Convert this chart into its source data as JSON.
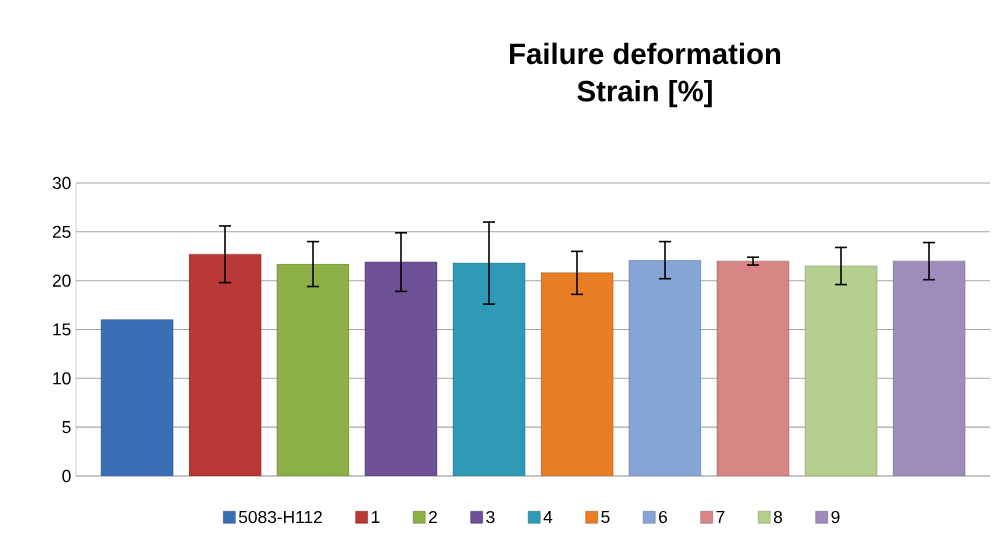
{
  "chart_data": {
    "type": "bar",
    "title": "Failure deformation",
    "subtitle": "Strain [%]",
    "categories": [
      null
    ],
    "series": [
      {
        "name": "5083-H112",
        "color": "#3a6fb5",
        "values": [
          16.0
        ],
        "errors": [
          null
        ]
      },
      {
        "name": "1",
        "color": "#b83835",
        "values": [
          22.7
        ],
        "errors": [
          2.9
        ]
      },
      {
        "name": "2",
        "color": "#8cb045",
        "values": [
          21.7
        ],
        "errors": [
          2.3
        ]
      },
      {
        "name": "3",
        "color": "#6e5196",
        "values": [
          21.9
        ],
        "errors": [
          3.0
        ]
      },
      {
        "name": "4",
        "color": "#2e9ab5",
        "values": [
          21.8
        ],
        "errors": [
          4.2
        ]
      },
      {
        "name": "5",
        "color": "#e97d24",
        "values": [
          20.8
        ],
        "errors": [
          2.2
        ]
      },
      {
        "name": "6",
        "color": "#87a4d6",
        "values": [
          22.1
        ],
        "errors": [
          1.9
        ]
      },
      {
        "name": "7",
        "color": "#d78585",
        "values": [
          22.0
        ],
        "errors": [
          0.4
        ]
      },
      {
        "name": "8",
        "color": "#b4cf8d",
        "values": [
          21.5
        ],
        "errors": [
          1.9
        ]
      },
      {
        "name": "9",
        "color": "#9e8cbb",
        "values": [
          22.0
        ],
        "errors": [
          1.9
        ]
      }
    ],
    "ylim": [
      0,
      30
    ],
    "yticks": [
      0,
      5,
      10,
      15,
      20,
      25,
      30
    ],
    "grid": "y",
    "legend": "bottom"
  }
}
